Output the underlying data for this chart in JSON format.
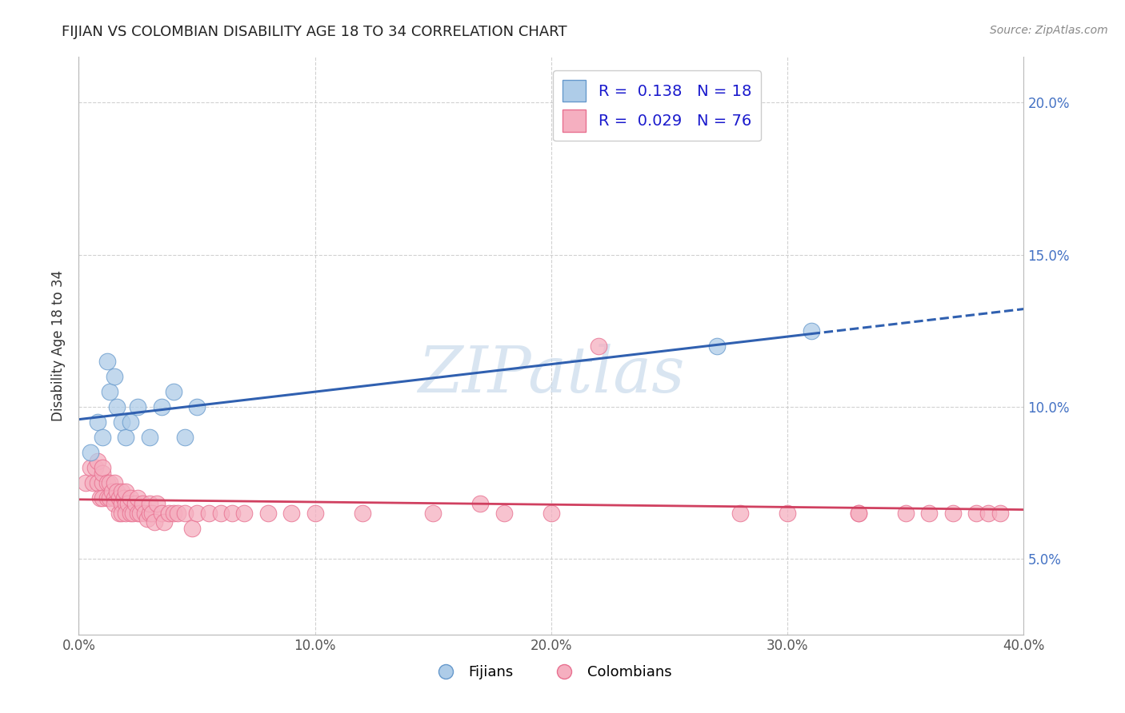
{
  "title": "FIJIAN VS COLOMBIAN DISABILITY AGE 18 TO 34 CORRELATION CHART",
  "source_text": "Source: ZipAtlas.com",
  "ylabel": "Disability Age 18 to 34",
  "watermark": "ZIPatlas",
  "xlim": [
    0.0,
    0.4
  ],
  "ylim": [
    0.025,
    0.215
  ],
  "xticks": [
    0.0,
    0.1,
    0.2,
    0.3,
    0.4
  ],
  "xtick_labels": [
    "0.0%",
    "10.0%",
    "20.0%",
    "30.0%",
    "40.0%"
  ],
  "yticks": [
    0.05,
    0.1,
    0.15,
    0.2
  ],
  "ytick_labels": [
    "5.0%",
    "10.0%",
    "15.0%",
    "20.0%"
  ],
  "fijian_color": "#aecce8",
  "colombian_color": "#f5afc0",
  "fijian_edge_color": "#6699cc",
  "colombian_edge_color": "#e87090",
  "fijian_line_color": "#3060b0",
  "colombian_line_color": "#d04060",
  "fijian_R": 0.138,
  "fijian_N": 18,
  "colombian_R": 0.029,
  "colombian_N": 76,
  "fijian_x": [
    0.005,
    0.008,
    0.01,
    0.012,
    0.013,
    0.015,
    0.016,
    0.018,
    0.02,
    0.022,
    0.025,
    0.03,
    0.035,
    0.04,
    0.045,
    0.05,
    0.27,
    0.31
  ],
  "fijian_y": [
    0.085,
    0.095,
    0.09,
    0.115,
    0.105,
    0.11,
    0.1,
    0.095,
    0.09,
    0.095,
    0.1,
    0.09,
    0.1,
    0.105,
    0.09,
    0.1,
    0.12,
    0.125
  ],
  "colombian_x": [
    0.003,
    0.005,
    0.006,
    0.007,
    0.008,
    0.008,
    0.009,
    0.01,
    0.01,
    0.01,
    0.01,
    0.012,
    0.012,
    0.013,
    0.013,
    0.014,
    0.015,
    0.015,
    0.015,
    0.016,
    0.017,
    0.017,
    0.018,
    0.018,
    0.018,
    0.019,
    0.02,
    0.02,
    0.02,
    0.021,
    0.022,
    0.022,
    0.023,
    0.024,
    0.025,
    0.025,
    0.026,
    0.027,
    0.028,
    0.029,
    0.03,
    0.03,
    0.031,
    0.032,
    0.033,
    0.035,
    0.036,
    0.038,
    0.04,
    0.042,
    0.045,
    0.048,
    0.05,
    0.055,
    0.06,
    0.065,
    0.07,
    0.08,
    0.09,
    0.1,
    0.12,
    0.15,
    0.17,
    0.18,
    0.2,
    0.22,
    0.28,
    0.3,
    0.33,
    0.33,
    0.35,
    0.36,
    0.37,
    0.38,
    0.385,
    0.39
  ],
  "colombian_y": [
    0.075,
    0.08,
    0.075,
    0.08,
    0.075,
    0.082,
    0.07,
    0.075,
    0.07,
    0.078,
    0.08,
    0.075,
    0.07,
    0.075,
    0.07,
    0.072,
    0.075,
    0.07,
    0.068,
    0.072,
    0.07,
    0.065,
    0.068,
    0.072,
    0.065,
    0.07,
    0.068,
    0.065,
    0.072,
    0.068,
    0.065,
    0.07,
    0.065,
    0.068,
    0.065,
    0.07,
    0.065,
    0.068,
    0.065,
    0.063,
    0.065,
    0.068,
    0.065,
    0.062,
    0.068,
    0.065,
    0.062,
    0.065,
    0.065,
    0.065,
    0.065,
    0.06,
    0.065,
    0.065,
    0.065,
    0.065,
    0.065,
    0.065,
    0.065,
    0.065,
    0.065,
    0.065,
    0.068,
    0.065,
    0.065,
    0.12,
    0.065,
    0.065,
    0.065,
    0.065,
    0.065,
    0.065,
    0.065,
    0.065,
    0.065,
    0.065
  ],
  "background_color": "#ffffff",
  "grid_color": "#cccccc",
  "title_color": "#222222",
  "legend_text_color": "#1a1acd",
  "watermark_color": "#c5d8ea"
}
